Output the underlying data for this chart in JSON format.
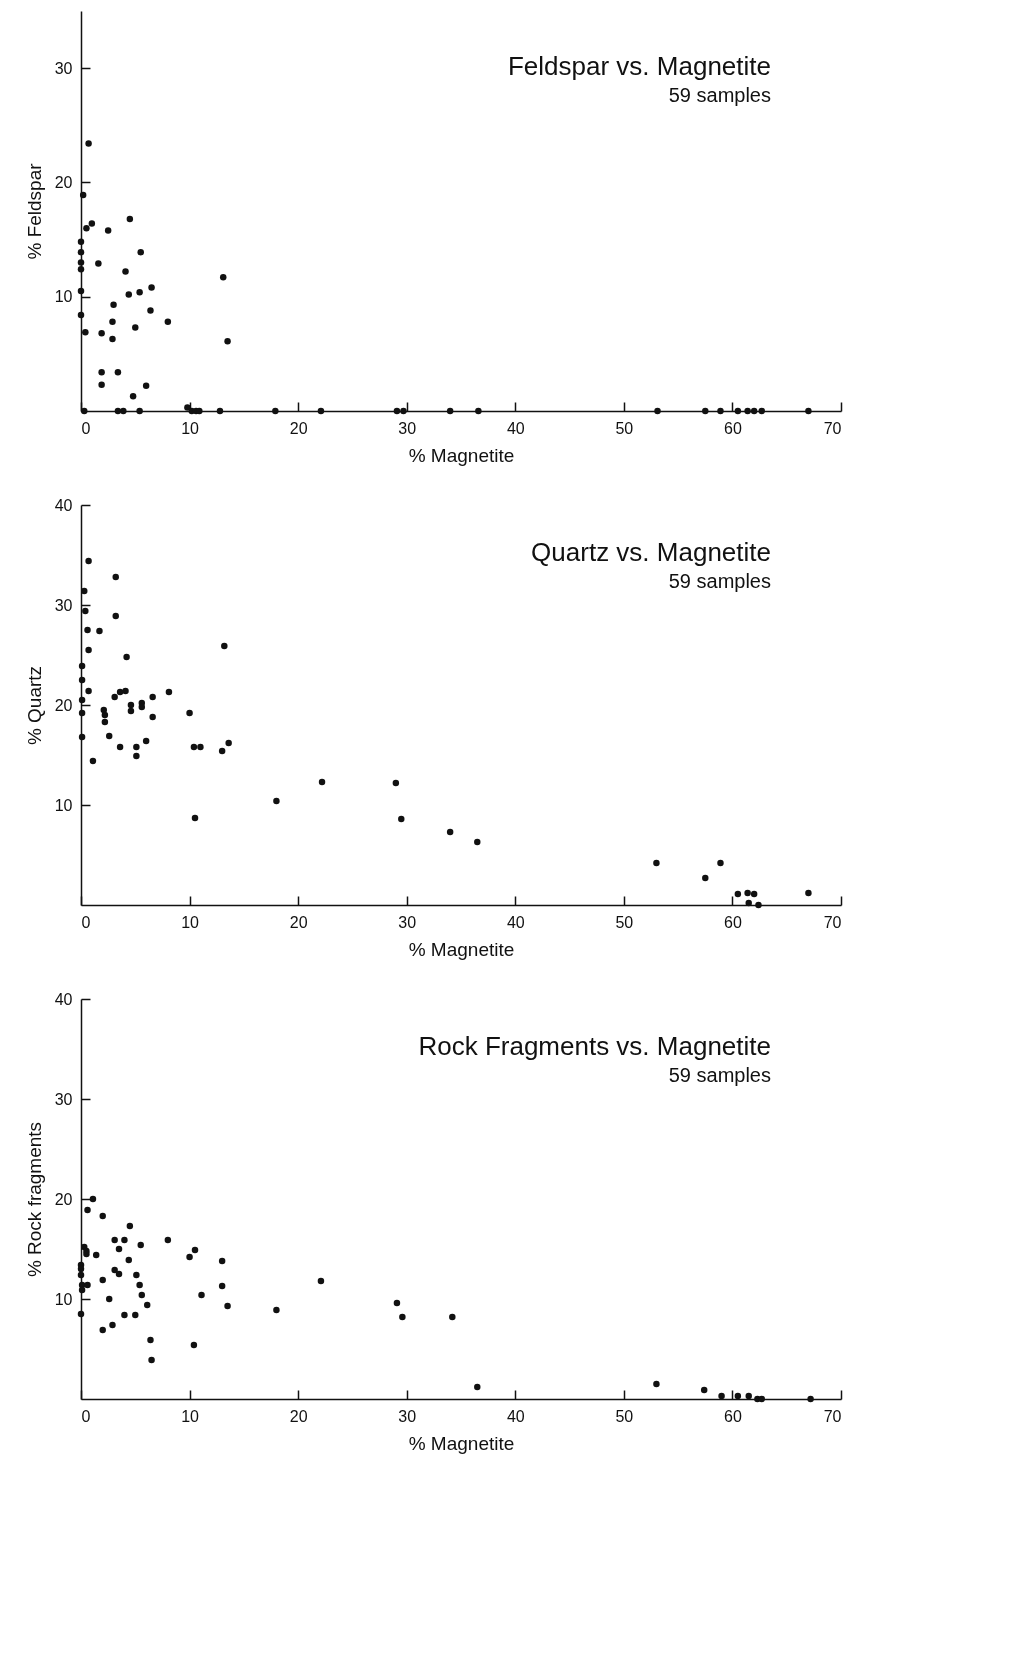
{
  "chart_data": [
    {
      "type": "scatter",
      "title": "Feldspar vs. Magnetite",
      "subtitle": "59 samples",
      "xlabel": "% Magnetite",
      "ylabel": "% Feldspar",
      "xlim": [
        0,
        70
      ],
      "ylim": [
        0,
        35
      ],
      "xticks": [
        0,
        10,
        20,
        30,
        40,
        50,
        60,
        70
      ],
      "yticks": [
        10,
        20,
        30
      ],
      "marker": "circle",
      "series": [
        {
          "color": "#111111",
          "x": [
            0.7,
            0.2,
            0.5,
            1.0,
            0,
            0,
            0,
            0,
            0,
            0,
            0.4,
            1.6,
            2.5,
            4.5,
            5.5,
            4.1,
            4.4,
            5.4,
            6.5,
            3.0,
            2.9,
            2.9,
            1.9,
            5.0,
            6.4,
            8.0,
            13.1,
            13.5,
            1.9,
            1.9,
            3.4,
            6.0,
            4.8,
            9.8,
            0.3,
            3.4,
            3.9,
            5.4,
            10.2,
            10.6,
            10.9,
            12.8,
            17.9,
            22.1,
            29.1,
            29.7,
            34.0,
            36.6,
            53.1,
            57.5,
            58.9,
            60.5,
            61.4,
            62.0,
            62.7,
            67.0
          ],
          "values": [
            23.4,
            18.9,
            16.0,
            16.4,
            14.8,
            13.9,
            13.0,
            12.4,
            10.5,
            8.4,
            6.9,
            12.9,
            15.8,
            16.8,
            13.9,
            12.2,
            10.2,
            10.4,
            10.8,
            9.3,
            7.8,
            6.3,
            6.8,
            7.3,
            8.8,
            7.8,
            11.7,
            6.1,
            3.4,
            2.3,
            3.4,
            2.2,
            1.3,
            0.3,
            0,
            0,
            0,
            0,
            0,
            0,
            0,
            0,
            0,
            0,
            0,
            0,
            0,
            0,
            0,
            0,
            0,
            0,
            0,
            0,
            0,
            0
          ]
        }
      ]
    },
    {
      "type": "scatter",
      "title": "Quartz vs. Magnetite",
      "subtitle": "59 samples",
      "xlabel": "% Magnetite",
      "ylabel": "% Quartz",
      "xlim": [
        0,
        70
      ],
      "ylim": [
        0,
        40
      ],
      "xticks": [
        0,
        10,
        20,
        30,
        40,
        50,
        60,
        70
      ],
      "yticks": [
        10,
        20,
        30,
        40
      ],
      "marker": "circle",
      "series": [
        {
          "color": "#111111",
          "x": [
            0.7,
            0.3,
            0.4,
            0.6,
            0.7,
            0.1,
            0.1,
            0.7,
            0.1,
            0.1,
            0.1,
            1.1,
            1.7,
            3.2,
            3.2,
            4.2,
            2.1,
            2.2,
            2.2,
            2.6,
            3.1,
            3.6,
            4.1,
            3.6,
            4.6,
            4.6,
            5.1,
            5.1,
            5.6,
            5.6,
            6.0,
            6.6,
            6.6,
            8.1,
            10.0,
            10.4,
            11.0,
            10.5,
            13.2,
            13.0,
            13.6,
            18.0,
            22.2,
            29.0,
            29.5,
            34.0,
            36.5,
            53.0,
            57.5,
            58.9,
            60.5,
            61.4,
            62.0,
            61.5,
            62.4,
            67.0
          ],
          "values": [
            34.4,
            31.4,
            29.4,
            27.5,
            25.5,
            23.9,
            22.5,
            21.4,
            20.5,
            19.2,
            16.8,
            14.4,
            27.4,
            32.8,
            28.9,
            24.8,
            19.5,
            19.0,
            18.3,
            16.9,
            20.8,
            21.3,
            21.4,
            15.8,
            20.0,
            19.4,
            15.8,
            14.9,
            20.2,
            19.8,
            16.4,
            20.8,
            18.8,
            21.3,
            19.2,
            15.8,
            15.8,
            8.7,
            25.9,
            15.4,
            16.2,
            10.4,
            12.3,
            12.2,
            8.6,
            7.3,
            6.3,
            4.2,
            2.7,
            4.2,
            1.1,
            1.2,
            1.1,
            0.2,
            0,
            1.2
          ]
        }
      ]
    },
    {
      "type": "scatter",
      "title": "Rock Fragments vs. Magnetite",
      "subtitle": "59 samples",
      "xlabel": "% Magnetite",
      "ylabel": "% Rock fragments",
      "xlim": [
        0,
        70
      ],
      "ylim": [
        0,
        40
      ],
      "xticks": [
        0,
        10,
        20,
        30,
        40,
        50,
        60,
        70
      ],
      "yticks": [
        10,
        20,
        30,
        40
      ],
      "marker": "circle",
      "series": [
        {
          "color": "#111111",
          "x": [
            1.1,
            0.6,
            2.0,
            0.3,
            0.5,
            0.5,
            1.4,
            0,
            0,
            0,
            0.1,
            0.1,
            0.6,
            0,
            2.0,
            2.6,
            2.0,
            2.9,
            3.1,
            4.0,
            3.5,
            4.5,
            4.4,
            3.1,
            3.5,
            4.0,
            5.0,
            5.5,
            5.1,
            5.4,
            5.6,
            6.1,
            6.4,
            6.5,
            8.0,
            10.0,
            10.5,
            11.1,
            10.4,
            13.0,
            13.0,
            13.5,
            18.0,
            22.1,
            29.1,
            29.6,
            34.2,
            36.5,
            53.0,
            57.4,
            59.0,
            60.5,
            61.5,
            62.3,
            62.7,
            67.2
          ],
          "values": [
            20.0,
            18.9,
            18.3,
            15.2,
            14.8,
            14.5,
            14.4,
            13.4,
            13.0,
            12.4,
            11.4,
            10.9,
            11.4,
            8.5,
            11.9,
            10.0,
            6.9,
            7.4,
            15.9,
            15.9,
            15.0,
            17.3,
            13.9,
            12.9,
            12.5,
            8.4,
            8.4,
            15.4,
            12.4,
            11.4,
            10.4,
            9.4,
            5.9,
            3.9,
            15.9,
            14.2,
            14.9,
            10.4,
            5.4,
            13.8,
            11.3,
            9.3,
            8.9,
            11.8,
            9.6,
            8.2,
            8.2,
            1.2,
            1.5,
            0.9,
            0.3,
            0.3,
            0.3,
            0,
            0,
            0
          ]
        }
      ]
    }
  ]
}
